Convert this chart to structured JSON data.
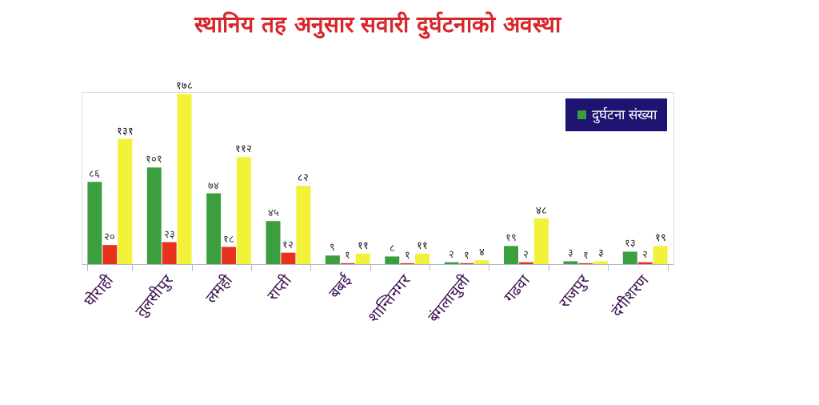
{
  "chart_data": {
    "type": "bar",
    "title": "स्थानिय तह अनुसार सवारी दुर्घटनाको अवस्था",
    "categories": [
      "घोराही",
      "तुलसीपुर",
      "लमही",
      "राप्ती",
      "बबई",
      "शान्तिनगर",
      "बंगलाचुली",
      "गढवा",
      "राजपुर",
      "दंगीशरण"
    ],
    "series": [
      {
        "name": "दुर्घटना संख्या",
        "color": "#3b9e3f",
        "values": [
          86,
          101,
          74,
          45,
          9,
          8,
          2,
          19,
          3,
          13
        ],
        "value_labels": [
          "८६",
          "१०१",
          "७४",
          "४५",
          "९",
          "८",
          "२",
          "१९",
          "३",
          "१३"
        ]
      },
      {
        "color": "#e8321c",
        "values": [
          20,
          23,
          18,
          12,
          1,
          1,
          1,
          2,
          1,
          2
        ],
        "value_labels": [
          "२०",
          "२३",
          "१८",
          "१२",
          "१",
          "१",
          "१",
          "२",
          "१",
          "२"
        ]
      },
      {
        "color": "#f2f23a",
        "values": [
          131,
          178,
          112,
          82,
          11,
          11,
          4,
          48,
          3,
          19
        ],
        "value_labels": [
          "१३१",
          "१७८",
          "११२",
          "८२",
          "११",
          "११",
          "४",
          "४८",
          "३",
          "१९"
        ]
      }
    ],
    "legend": "top right",
    "grid": false,
    "tick_labels": "x"
  }
}
